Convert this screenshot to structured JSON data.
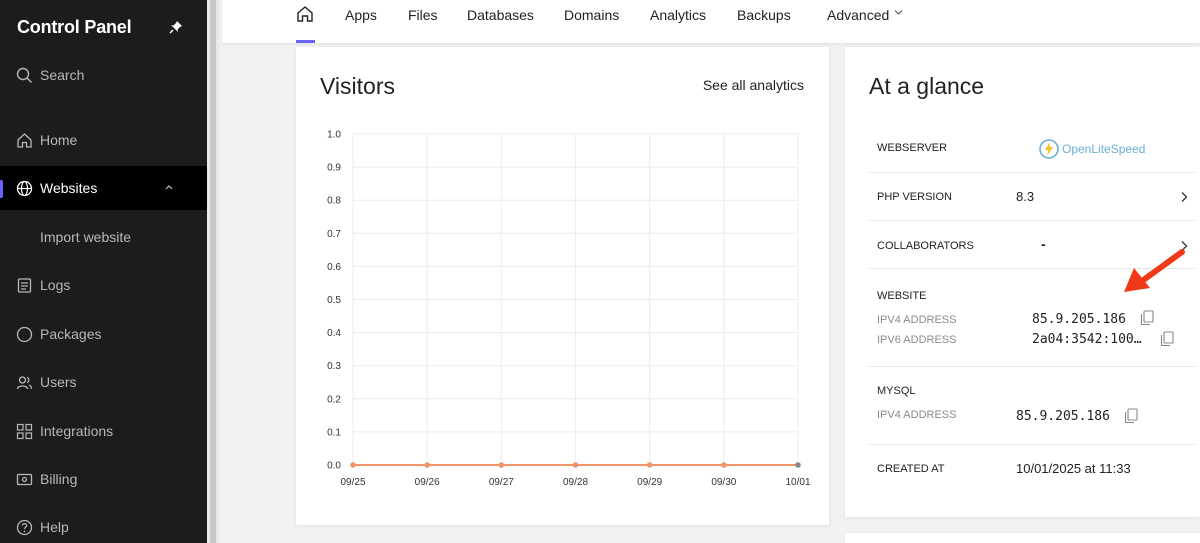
{
  "sidebar": {
    "title": "Control Panel",
    "items": [
      {
        "label": "Search"
      },
      {
        "label": "Home"
      },
      {
        "label": "Websites"
      },
      {
        "label": "Import website"
      },
      {
        "label": "Logs"
      },
      {
        "label": "Packages"
      },
      {
        "label": "Users"
      },
      {
        "label": "Integrations"
      },
      {
        "label": "Billing"
      },
      {
        "label": "Help"
      }
    ]
  },
  "topnav": {
    "items": [
      "Apps",
      "Files",
      "Databases",
      "Domains",
      "Analytics",
      "Backups",
      "Advanced"
    ]
  },
  "visitors": {
    "title": "Visitors",
    "see_all": "See all analytics"
  },
  "chart_data": {
    "type": "line",
    "x": [
      "09/25",
      "09/26",
      "09/27",
      "09/28",
      "09/29",
      "09/30",
      "10/01"
    ],
    "series": [
      {
        "values": [
          0,
          0,
          0,
          0,
          0,
          0,
          0
        ]
      }
    ],
    "ylim": [
      0,
      1
    ],
    "yticks": [
      "1.0",
      "0.9",
      "0.8",
      "0.7",
      "0.6",
      "0.5",
      "0.4",
      "0.3",
      "0.2",
      "0.1",
      "0.0"
    ],
    "grid": true,
    "line_color": "#f0956a",
    "last_point_color": "#888888"
  },
  "glance": {
    "title": "At a glance",
    "webserver_label": "WEBSERVER",
    "webserver_value": "OpenLiteSpeed",
    "php_label": "PHP VERSION",
    "php_value": "8.3",
    "collab_label": "COLLABORATORS",
    "collab_value": "-",
    "website_label": "WEBSITE",
    "ipv4_label": "IPV4 ADDRESS",
    "ipv4_value": "85.9.205.186",
    "ipv6_label": "IPV6 ADDRESS",
    "ipv6_value": "2a04:3542:100…",
    "mysql_label": "MYSQL",
    "mysql_ipv4_label": "IPV4 ADDRESS",
    "mysql_ipv4_value": "85.9.205.186",
    "created_label": "CREATED AT",
    "created_value": "10/01/2025 at 11:33"
  },
  "colors": {
    "accent": "#6c63ff",
    "annotation_arrow": "#f03a17"
  }
}
